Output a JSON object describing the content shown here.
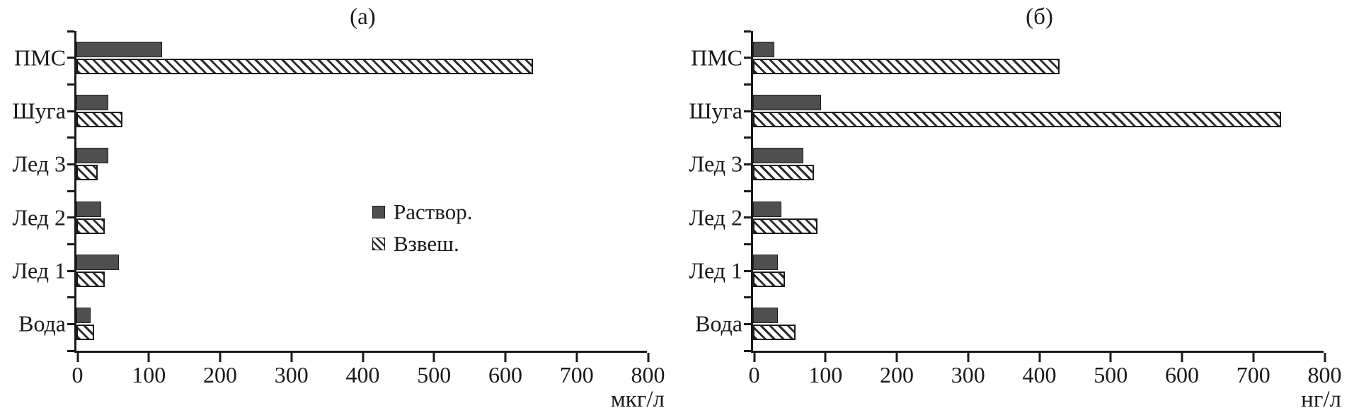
{
  "colors": {
    "background": "#ffffff",
    "axis": "#1a1a1a",
    "bar_solid": "#4f4f4f",
    "bar_outline": "#1a1a1a",
    "hatch_stroke": "#2b2b2b"
  },
  "chart_data": [
    {
      "type": "bar",
      "orientation": "horizontal",
      "title": "(а)",
      "unit_label": "мкг/л",
      "categories": [
        "ПМС",
        "Шуга",
        "Лед 3",
        "Лед 2",
        "Лед 1",
        "Вода"
      ],
      "series": [
        {
          "name": "Раствор.",
          "style": "solid-fill",
          "values": [
            120,
            45,
            45,
            35,
            60,
            20
          ]
        },
        {
          "name": "Взвеш.",
          "style": "diagonal-hatch",
          "values": [
            640,
            65,
            30,
            40,
            40,
            25
          ]
        }
      ],
      "xlim": [
        0,
        800
      ],
      "xticks": [
        0,
        100,
        200,
        300,
        400,
        500,
        600,
        700,
        800
      ],
      "grid": false,
      "legend": {
        "visible": true,
        "position": "center-inside"
      }
    },
    {
      "type": "bar",
      "orientation": "horizontal",
      "title": "(б)",
      "unit_label": "нг/л",
      "categories": [
        "ПМС",
        "Шуга",
        "Лед 3",
        "Лед 2",
        "Лед 1",
        "Вода"
      ],
      "series": [
        {
          "name": "Раствор.",
          "style": "solid-fill",
          "values": [
            30,
            95,
            70,
            40,
            35,
            35
          ]
        },
        {
          "name": "Взвеш.",
          "style": "diagonal-hatch",
          "values": [
            430,
            740,
            85,
            90,
            45,
            60
          ]
        }
      ],
      "xlim": [
        0,
        800
      ],
      "xticks": [
        0,
        100,
        200,
        300,
        400,
        500,
        600,
        700,
        800
      ],
      "grid": false,
      "legend": {
        "visible": false,
        "position": "none"
      }
    }
  ]
}
